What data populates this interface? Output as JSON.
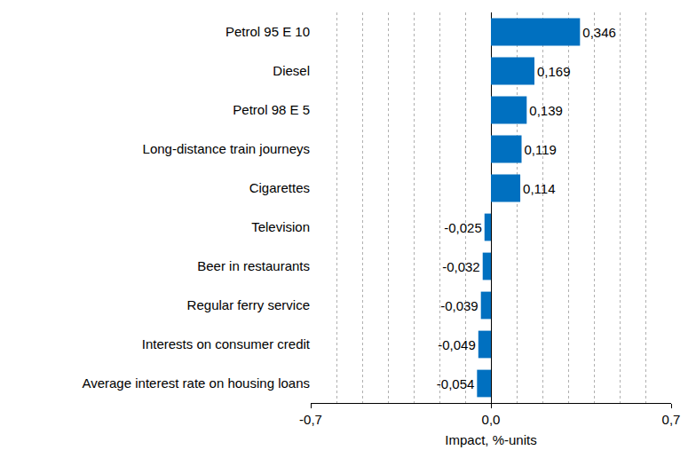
{
  "chart_data": {
    "type": "bar",
    "orientation": "horizontal",
    "categories": [
      "Petrol 95 E 10",
      "Diesel",
      "Petrol 98 E 5",
      "Long-distance train journeys",
      "Cigarettes",
      "Television",
      "Beer in restaurants",
      "Regular ferry service",
      "Interests on consumer credit",
      "Average interest rate on housing loans"
    ],
    "values": [
      0.346,
      0.169,
      0.139,
      0.119,
      0.114,
      -0.025,
      -0.032,
      -0.039,
      -0.049,
      -0.054
    ],
    "value_labels": [
      "0,346",
      "0,169",
      "0,139",
      "0,119",
      "0,114",
      "-0,025",
      "-0,032",
      "-0,039",
      "-0,049",
      "-0,054"
    ],
    "data_labels": true,
    "color": "#0070c0",
    "x_label": "Impact, %-units",
    "xlim": [
      -0.7,
      0.7
    ],
    "xticks": [
      {
        "value": -0.7,
        "label": "-0,7"
      },
      {
        "value": 0,
        "label": "0,0"
      },
      {
        "value": 0.7,
        "label": "0,7"
      }
    ],
    "grid": true
  }
}
